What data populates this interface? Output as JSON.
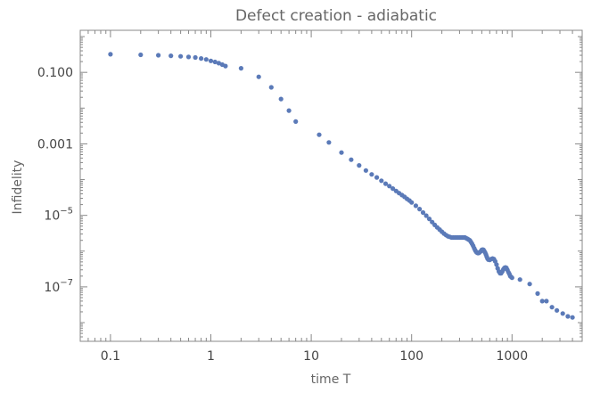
{
  "chart_data": {
    "type": "scatter",
    "title": "Defect creation - adiabatic",
    "xlabel": "time T",
    "ylabel": "Infidelity",
    "x_scale": "log",
    "y_scale": "log",
    "xlim": [
      0.05,
      5000
    ],
    "ylim": [
      3e-09,
      1.5
    ],
    "grid": false,
    "legend": "none",
    "marker_color": "#5b7ab8",
    "x_ticks": [
      {
        "value": 0.1,
        "label": "0.1"
      },
      {
        "value": 1,
        "label": "1"
      },
      {
        "value": 10,
        "label": "10"
      },
      {
        "value": 100,
        "label": "100"
      },
      {
        "value": 1000,
        "label": "1000"
      }
    ],
    "y_ticks": [
      {
        "value": 0.1,
        "label": "0.100",
        "base": "",
        "exp": ""
      },
      {
        "value": 0.001,
        "label": "0.001",
        "base": "",
        "exp": ""
      },
      {
        "value": 1e-05,
        "label": "",
        "base": "10",
        "exp": "−5"
      },
      {
        "value": 1e-07,
        "label": "",
        "base": "10",
        "exp": "−7"
      }
    ],
    "series": [
      {
        "points": [
          [
            0.1,
            0.32
          ],
          [
            0.2,
            0.31
          ],
          [
            0.3,
            0.3
          ],
          [
            0.4,
            0.29
          ],
          [
            0.5,
            0.28
          ],
          [
            0.6,
            0.27
          ],
          [
            0.7,
            0.26
          ],
          [
            0.8,
            0.245
          ],
          [
            0.9,
            0.23
          ],
          [
            1.0,
            0.21
          ],
          [
            1.1,
            0.195
          ],
          [
            1.2,
            0.18
          ],
          [
            1.3,
            0.165
          ],
          [
            1.4,
            0.15
          ],
          [
            2,
            0.13
          ],
          [
            3,
            0.075
          ],
          [
            4,
            0.038
          ],
          [
            5,
            0.018
          ],
          [
            6,
            0.0085
          ],
          [
            7,
            0.0042
          ],
          [
            12,
            0.0018
          ],
          [
            15,
            0.0011
          ],
          [
            20,
            0.00057
          ],
          [
            25,
            0.00036
          ],
          [
            30,
            0.00025
          ],
          [
            35,
            0.00018
          ],
          [
            40,
            0.00014
          ],
          [
            45,
            0.000115
          ],
          [
            50,
            9.3e-05
          ],
          [
            55,
            7.7e-05
          ],
          [
            60,
            6.6e-05
          ],
          [
            65,
            5.6e-05
          ],
          [
            70,
            4.8e-05
          ],
          [
            75,
            4.2e-05
          ],
          [
            80,
            3.7e-05
          ],
          [
            85,
            3.3e-05
          ],
          [
            90,
            2.9e-05
          ],
          [
            95,
            2.6e-05
          ],
          [
            100,
            2.3e-05
          ],
          [
            110,
            1.85e-05
          ],
          [
            120,
            1.5e-05
          ],
          [
            130,
            1.2e-05
          ],
          [
            140,
            9.8e-06
          ],
          [
            150,
            8e-06
          ],
          [
            160,
            6.5e-06
          ],
          [
            170,
            5.4e-06
          ],
          [
            180,
            4.6e-06
          ],
          [
            190,
            4e-06
          ],
          [
            200,
            3.5e-06
          ],
          [
            210,
            3.1e-06
          ],
          [
            220,
            2.8e-06
          ],
          [
            230,
            2.6e-06
          ],
          [
            240,
            2.5e-06
          ],
          [
            250,
            2.4e-06
          ],
          [
            260,
            2.4e-06
          ],
          [
            270,
            2.4e-06
          ],
          [
            280,
            2.4e-06
          ],
          [
            290,
            2.4e-06
          ],
          [
            300,
            2.4e-06
          ],
          [
            310,
            2.4e-06
          ],
          [
            320,
            2.4e-06
          ],
          [
            330,
            2.4e-06
          ],
          [
            340,
            2.4e-06
          ],
          [
            350,
            2.3e-06
          ],
          [
            360,
            2.2e-06
          ],
          [
            370,
            2.1e-06
          ],
          [
            380,
            2e-06
          ],
          [
            390,
            1.8e-06
          ],
          [
            400,
            1.6e-06
          ],
          [
            410,
            1.4e-06
          ],
          [
            420,
            1.2e-06
          ],
          [
            430,
            1.05e-06
          ],
          [
            440,
            9.5e-07
          ],
          [
            450,
            9e-07
          ],
          [
            460,
            8.8e-07
          ],
          [
            470,
            9e-07
          ],
          [
            480,
            9.5e-07
          ],
          [
            490,
            1e-06
          ],
          [
            500,
            1.08e-06
          ],
          [
            510,
            1.1e-06
          ],
          [
            520,
            1.08e-06
          ],
          [
            530,
            1e-06
          ],
          [
            540,
            9e-07
          ],
          [
            550,
            8e-07
          ],
          [
            560,
            7e-07
          ],
          [
            570,
            6.2e-07
          ],
          [
            580,
            5.8e-07
          ],
          [
            600,
            5.7e-07
          ],
          [
            620,
            6e-07
          ],
          [
            640,
            6.2e-07
          ],
          [
            660,
            6e-07
          ],
          [
            680,
            5.2e-07
          ],
          [
            700,
            4.2e-07
          ],
          [
            720,
            3.3e-07
          ],
          [
            740,
            2.7e-07
          ],
          [
            760,
            2.4e-07
          ],
          [
            780,
            2.4e-07
          ],
          [
            800,
            2.7e-07
          ],
          [
            820,
            3.1e-07
          ],
          [
            840,
            3.4e-07
          ],
          [
            860,
            3.5e-07
          ],
          [
            880,
            3.4e-07
          ],
          [
            900,
            3e-07
          ],
          [
            920,
            2.6e-07
          ],
          [
            940,
            2.3e-07
          ],
          [
            960,
            2e-07
          ],
          [
            980,
            1.9e-07
          ],
          [
            1000,
            1.8e-07
          ],
          [
            1200,
            1.6e-07
          ],
          [
            1500,
            1.2e-07
          ],
          [
            1800,
            6.5e-08
          ],
          [
            2000,
            4e-08
          ],
          [
            2200,
            4e-08
          ],
          [
            2500,
            2.7e-08
          ],
          [
            2800,
            2.2e-08
          ],
          [
            3200,
            1.8e-08
          ],
          [
            3600,
            1.5e-08
          ],
          [
            4000,
            1.4e-08
          ]
        ]
      }
    ]
  }
}
